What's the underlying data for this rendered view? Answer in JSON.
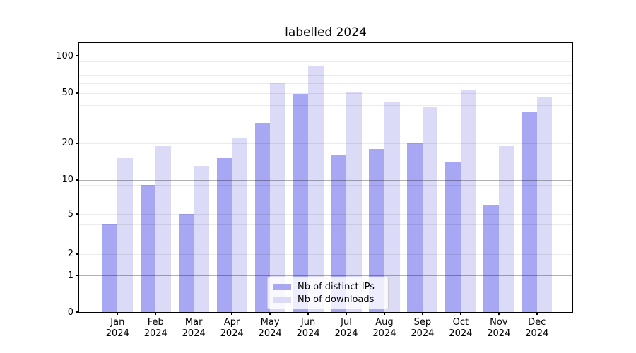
{
  "chart_data": {
    "type": "bar",
    "title": "labelled 2024",
    "year_label": "2024",
    "months": [
      "Jan",
      "Feb",
      "Mar",
      "Apr",
      "May",
      "Jun",
      "Jul",
      "Aug",
      "Sep",
      "Oct",
      "Nov",
      "Dec"
    ],
    "categories": [
      "Jan 2024",
      "Feb 2024",
      "Mar 2024",
      "Apr 2024",
      "May 2024",
      "Jun 2024",
      "Jul 2024",
      "Aug 2024",
      "Sep 2024",
      "Oct 2024",
      "Nov 2024",
      "Dec 2024"
    ],
    "series": [
      {
        "name": "Nb of distinct IPs",
        "color": "#a7a7f4",
        "values": [
          4,
          9,
          5,
          15,
          29,
          49,
          16,
          18,
          20,
          14,
          6,
          35
        ]
      },
      {
        "name": "Nb of downloads",
        "color": "#dbdbf8",
        "values": [
          15,
          19,
          13,
          22,
          61,
          82,
          51,
          42,
          39,
          53,
          19,
          46
        ]
      }
    ],
    "y_axis": {
      "scale": "symlog",
      "tick_labels": [
        "0",
        "1",
        "2",
        "5",
        "10",
        "20",
        "50",
        "100"
      ],
      "ticks": [
        0,
        1,
        2,
        5,
        10,
        20,
        50,
        100
      ],
      "major_gridlines": [
        1,
        10,
        100
      ],
      "minor_gridlines": [
        2,
        3,
        4,
        5,
        6,
        7,
        8,
        9,
        20,
        30,
        40,
        50,
        60,
        70,
        80,
        90
      ],
      "ylim": [
        0,
        127
      ]
    },
    "grid": true,
    "legend": {
      "position": "inside-bottom-center",
      "items": [
        "Nb of distinct IPs",
        "Nb of downloads"
      ]
    }
  },
  "colors": {
    "background": "#ffffff",
    "bar_dark": "#a7a7f4",
    "bar_light": "#dbdbf8",
    "grid_major": "#b3b3b3",
    "grid_minor": "#ebebeb",
    "axis": "#000000"
  }
}
